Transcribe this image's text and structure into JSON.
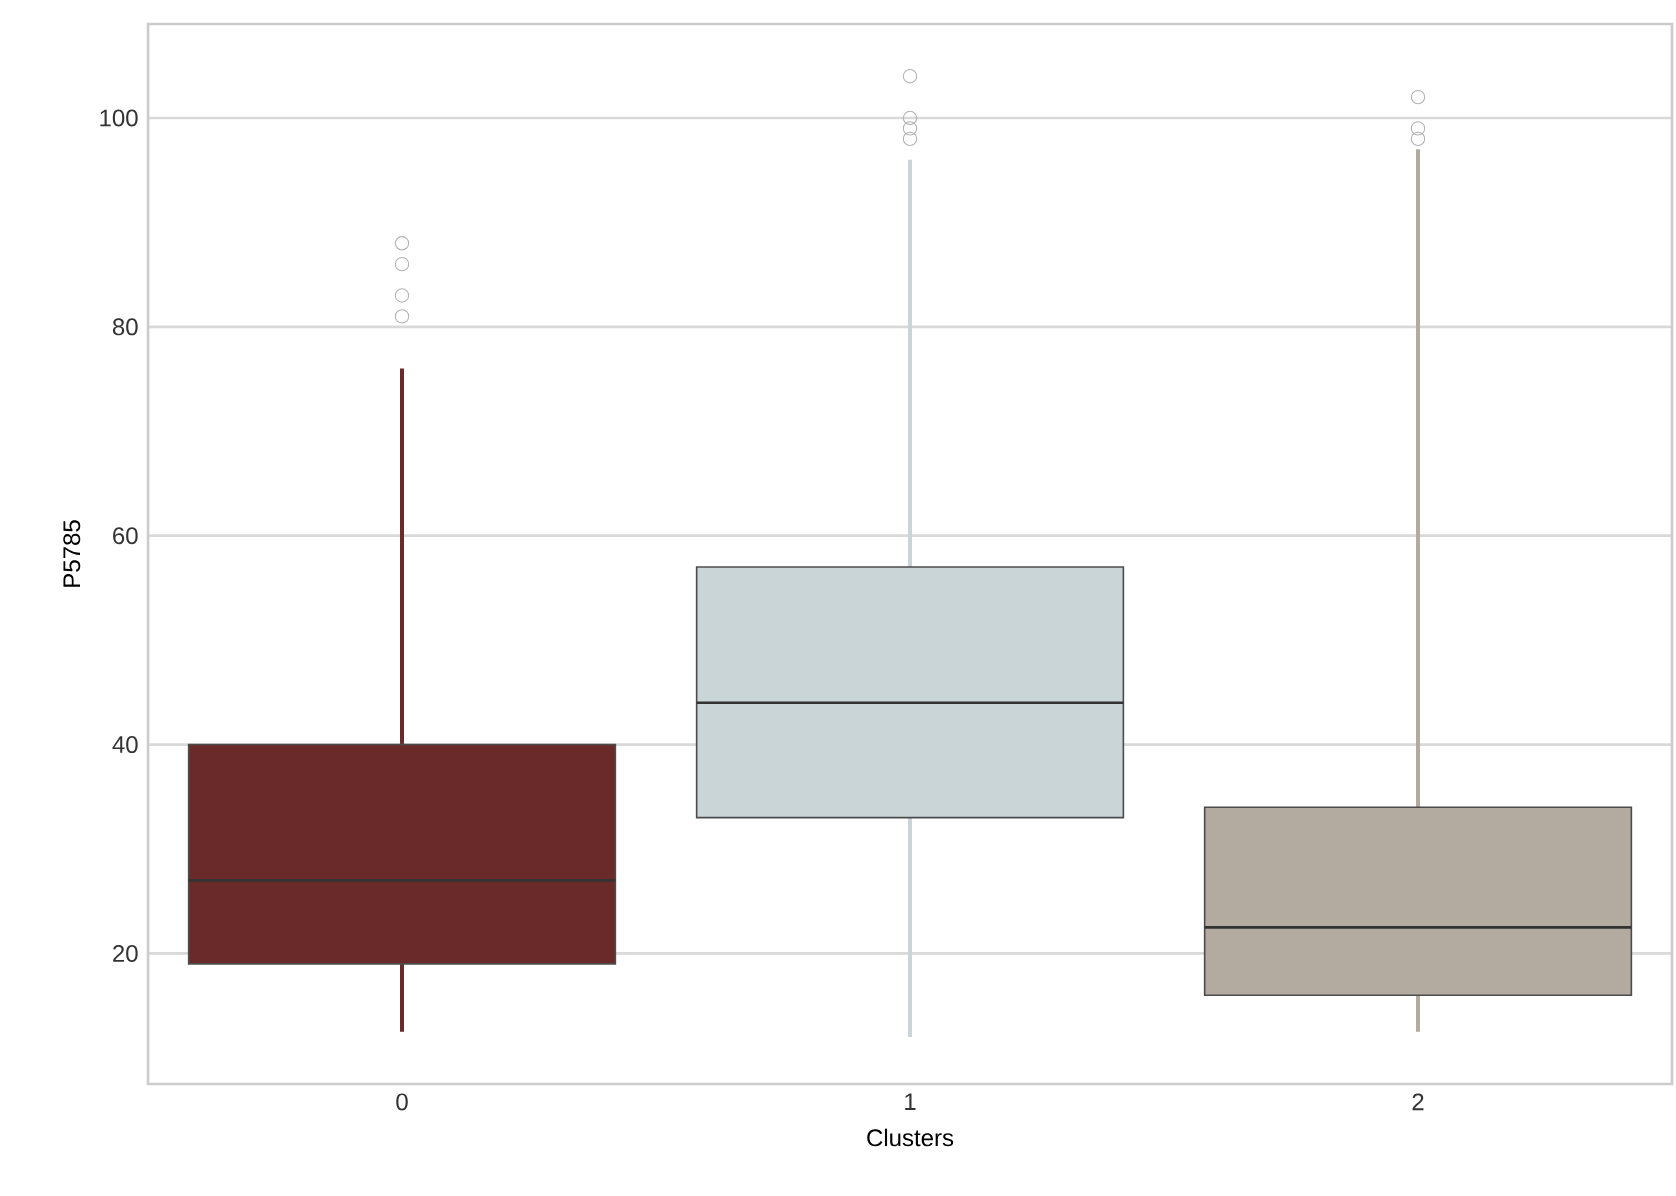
{
  "chart_data": {
    "type": "box",
    "xlabel": "Clusters",
    "ylabel": "P5785",
    "categories": [
      "0",
      "1",
      "2"
    ],
    "colors": [
      "#6b2a2a",
      "#c9d5d7",
      "#b3aaa0"
    ],
    "boxes": [
      {
        "low": 12.5,
        "q1": 19,
        "median": 27,
        "q3": 40,
        "high": 76,
        "outliers": [
          81,
          83,
          86,
          88
        ]
      },
      {
        "low": 12,
        "q1": 33,
        "median": 44,
        "q3": 57,
        "high": 96,
        "outliers": [
          98,
          99,
          100,
          104
        ]
      },
      {
        "low": 12.5,
        "q1": 16,
        "median": 22.5,
        "q3": 34,
        "high": 97,
        "outliers": [
          98,
          99,
          102
        ]
      }
    ],
    "ylim": [
      7.5,
      109
    ],
    "yticks": [
      20,
      40,
      60,
      80,
      100
    ],
    "grid": "y"
  }
}
